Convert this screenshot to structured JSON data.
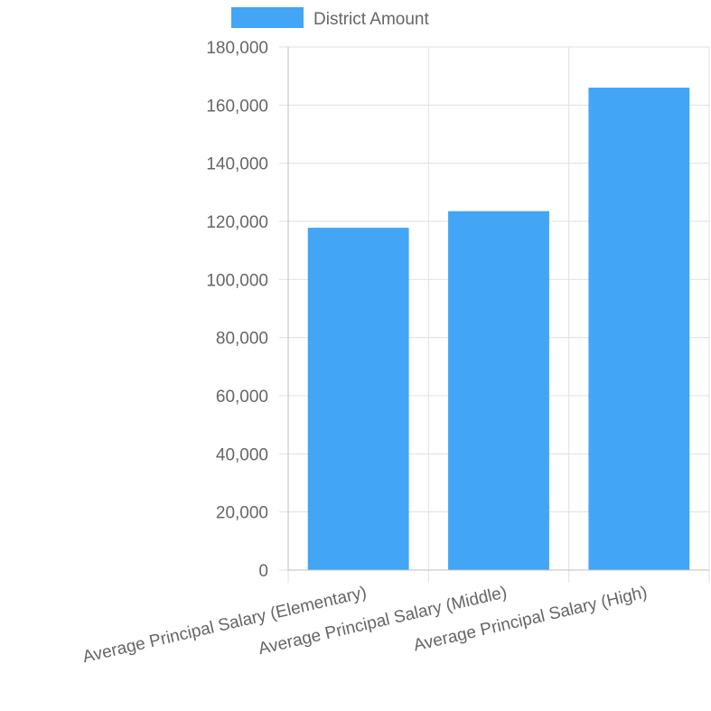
{
  "chart_data": {
    "type": "bar",
    "categories": [
      "Average Principal Salary (Elementary)",
      "Average Principal Salary (Middle)",
      "Average Principal Salary (High)"
    ],
    "series": [
      {
        "name": "District Amount",
        "values": [
          117800,
          123500,
          166000
        ],
        "color": "#42a5f5"
      }
    ],
    "ylim": [
      0,
      180000
    ],
    "yticks": [
      "0",
      "20,000",
      "40,000",
      "60,000",
      "80,000",
      "100,000",
      "120,000",
      "140,000",
      "160,000",
      "180,000"
    ],
    "ytick_values": [
      0,
      20000,
      40000,
      60000,
      80000,
      100000,
      120000,
      140000,
      160000,
      180000
    ],
    "grid": true,
    "legend_position": "top"
  }
}
